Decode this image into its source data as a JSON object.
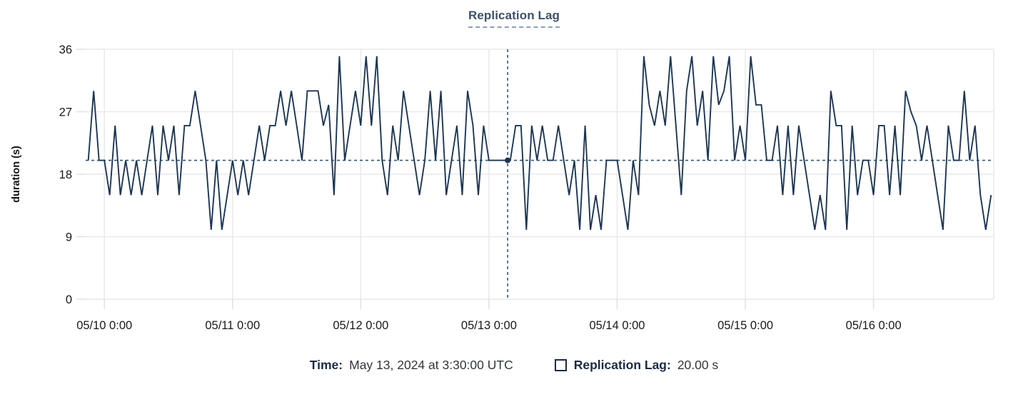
{
  "title": "Replication Lag",
  "colors": {
    "series": "#1c3654",
    "crosshair": "#30596d",
    "grid": "#e9e9e9",
    "tick": "#e0e0e0",
    "tick_label": "#17191c",
    "axis_title": "#101114",
    "title_text": "#3e5168",
    "legend_label": "#1d2b45",
    "legend_value": "#33363d"
  },
  "legend": {
    "time_label": "Time:",
    "time_value": "May 13, 2024 at 3:30:00 UTC",
    "series_label": "Replication Lag:",
    "series_value": "20.00 s"
  },
  "chart_data": {
    "type": "line",
    "title": "Replication Lag",
    "xlabel": "",
    "ylabel": "duration (s)",
    "ylim": [
      0,
      36
    ],
    "y_ticks": [
      0,
      9,
      18,
      27,
      36
    ],
    "x_tick_labels": [
      "05/10 0:00",
      "05/11 0:00",
      "05/12 0:00",
      "05/13 0:00",
      "05/14 0:00",
      "05/15 0:00",
      "05/16 0:00"
    ],
    "grid": true,
    "legend_position": "bottom",
    "series_name": "Replication Lag",
    "x_origin": "2024-05-09 20:30 UTC",
    "first_point_offset_hours": 0.5,
    "interval_minutes": 60,
    "values": [
      20,
      30,
      20,
      20,
      15,
      25,
      15,
      20,
      15,
      20,
      15,
      20,
      25,
      15,
      25,
      20,
      25,
      15,
      25,
      25,
      30,
      25,
      20,
      10,
      20,
      10,
      15,
      20,
      15,
      20,
      15,
      20,
      25,
      20,
      25,
      25,
      30,
      25,
      30,
      25,
      20,
      30,
      30,
      30,
      25,
      28,
      15,
      35,
      20,
      25,
      30,
      25,
      35,
      25,
      35,
      20,
      15,
      25,
      20,
      30,
      25,
      20,
      15,
      20,
      30,
      20,
      30,
      15,
      20,
      25,
      15,
      30,
      25,
      15,
      25,
      20,
      20,
      20,
      20,
      20,
      25,
      25,
      10,
      25,
      20,
      25,
      20,
      20,
      25,
      20,
      15,
      20,
      10,
      25,
      10,
      15,
      10,
      20,
      20,
      20,
      15,
      10,
      20,
      15,
      35,
      28,
      25,
      30,
      25,
      35,
      25,
      15,
      30,
      35,
      25,
      30,
      20,
      35,
      28,
      30,
      35,
      20,
      25,
      20,
      35,
      28,
      28,
      20,
      20,
      25,
      15,
      25,
      15,
      25,
      20,
      15,
      10,
      15,
      10,
      30,
      25,
      25,
      10,
      25,
      15,
      20,
      20,
      15,
      25,
      25,
      15,
      25,
      15,
      30,
      27,
      25,
      20,
      25,
      20,
      15,
      10,
      25,
      20,
      20,
      30,
      20,
      25,
      15,
      10,
      15
    ],
    "crosshair": {
      "time": "May 13, 2024 at 3:30:00 UTC",
      "hours_from_origin": 79,
      "value_s": 20.0
    }
  }
}
